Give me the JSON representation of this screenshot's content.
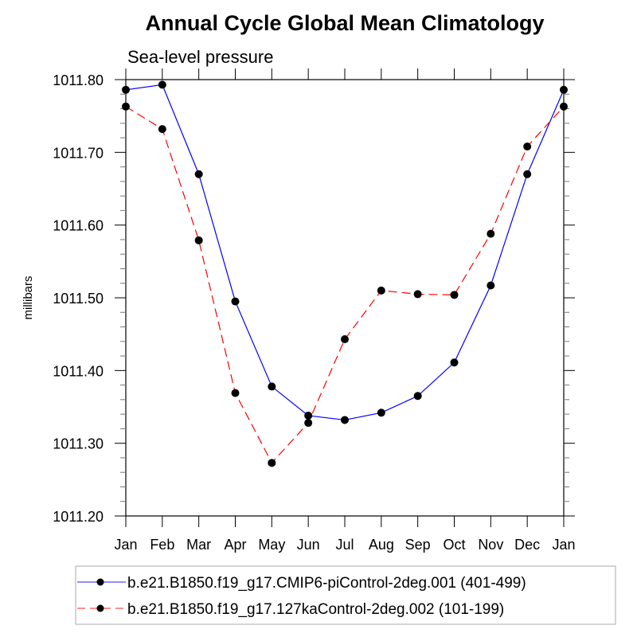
{
  "chart_data": {
    "type": "line",
    "title": "Annual Cycle Global Mean Climatology",
    "subtitle": "Sea-level pressure",
    "xlabel": "",
    "ylabel": "millibars",
    "categories": [
      "Jan",
      "Feb",
      "Mar",
      "Apr",
      "May",
      "Jun",
      "Jul",
      "Aug",
      "Sep",
      "Oct",
      "Nov",
      "Dec",
      "Jan"
    ],
    "ylim": [
      1011.2,
      1011.8
    ],
    "yticks": [
      "1011.20",
      "1011.30",
      "1011.40",
      "1011.50",
      "1011.60",
      "1011.70",
      "1011.80"
    ],
    "ytick_values": [
      1011.2,
      1011.3,
      1011.4,
      1011.5,
      1011.6,
      1011.7,
      1011.8
    ],
    "yminor_step": 0.02,
    "grid": false,
    "legend_position": "bottom",
    "series": [
      {
        "name": "b.e21.B1850.f19_g17.CMIP6-piControl-2deg.001 (401-499)",
        "color": "#0000ff",
        "dash": "solid",
        "marker": "filled-circle",
        "values": [
          1011.786,
          1011.793,
          1011.67,
          1011.495,
          1011.378,
          1011.338,
          1011.332,
          1011.342,
          1011.365,
          1011.411,
          1011.517,
          1011.67,
          1011.786
        ]
      },
      {
        "name": "b.e21.B1850.f19_g17.127kaControl-2deg.002 (101-199)",
        "color": "#ff0000",
        "dash": "dashed",
        "marker": "filled-circle",
        "values": [
          1011.763,
          1011.732,
          1011.579,
          1011.369,
          1011.273,
          1011.328,
          1011.443,
          1011.51,
          1011.505,
          1011.504,
          1011.588,
          1011.708,
          1011.763
        ]
      }
    ]
  }
}
